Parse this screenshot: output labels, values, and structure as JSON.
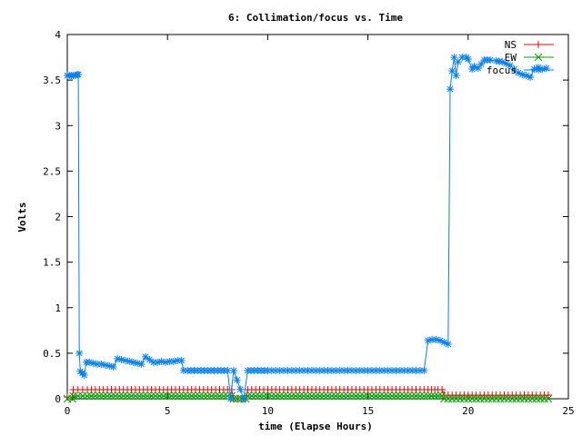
{
  "chart_data": {
    "type": "line",
    "title": "6: Collimation/focus vs. Time",
    "xlabel": "time (Elapse Hours)",
    "ylabel": "Volts",
    "xlim": [
      0,
      25
    ],
    "ylim": [
      0,
      4
    ],
    "xticks": [
      0,
      5,
      10,
      15,
      20,
      25
    ],
    "yticks": [
      0,
      0.5,
      1,
      1.5,
      2,
      2.5,
      3,
      3.5,
      4
    ],
    "grid": false,
    "legend_position": "top-right",
    "series": [
      {
        "name": "NS",
        "color": "#ff0000",
        "marker": "plus",
        "x": [
          0,
          0.25,
          0.3,
          1,
          2,
          3,
          4,
          5,
          6,
          7,
          8,
          8.2,
          8.3,
          8.9,
          9,
          10,
          11,
          12,
          13,
          14,
          15,
          16,
          17,
          18,
          18.5,
          18.7,
          18.8,
          19,
          20,
          21,
          22,
          23,
          24
        ],
        "y": [
          0.02,
          0.02,
          0.1,
          0.1,
          0.1,
          0.1,
          0.1,
          0.1,
          0.1,
          0.1,
          0.1,
          0.1,
          0.0,
          0.0,
          0.1,
          0.1,
          0.1,
          0.1,
          0.1,
          0.1,
          0.1,
          0.1,
          0.1,
          0.1,
          0.1,
          0.1,
          0.04,
          0.04,
          0.04,
          0.04,
          0.04,
          0.04,
          0.04
        ]
      },
      {
        "name": "EW",
        "color": "#00a000",
        "marker": "cross",
        "x": [
          0,
          0.25,
          0.3,
          1,
          2,
          3,
          4,
          5,
          6,
          7,
          8,
          8.2,
          8.3,
          8.9,
          9,
          10,
          11,
          12,
          13,
          14,
          15,
          16,
          17,
          18,
          18.5,
          18.7,
          18.8,
          19,
          20,
          21,
          22,
          23,
          24
        ],
        "y": [
          0.0,
          0.0,
          0.03,
          0.03,
          0.03,
          0.03,
          0.03,
          0.03,
          0.03,
          0.03,
          0.03,
          0.03,
          0.0,
          0.0,
          0.03,
          0.03,
          0.03,
          0.03,
          0.03,
          0.03,
          0.03,
          0.03,
          0.03,
          0.03,
          0.03,
          0.03,
          0.0,
          0.0,
          0.0,
          0.0,
          0.0,
          0.0,
          0.0
        ]
      },
      {
        "name": "focus",
        "color": "#0080ff",
        "marker": "star",
        "x": [
          0,
          0.1,
          0.2,
          0.3,
          0.4,
          0.5,
          0.55,
          0.6,
          0.65,
          0.75,
          0.85,
          0.95,
          1.1,
          1.3,
          1.5,
          1.7,
          1.9,
          2.1,
          2.3,
          2.5,
          2.7,
          2.9,
          3.1,
          3.3,
          3.5,
          3.7,
          3.9,
          4.1,
          4.3,
          4.5,
          4.7,
          4.9,
          5.1,
          5.3,
          5.5,
          5.7,
          5.8,
          6.0,
          6.5,
          7.0,
          7.5,
          8.0,
          8.15,
          8.3,
          8.8,
          9.0,
          9.5,
          10,
          11,
          12,
          13,
          14,
          15,
          16,
          17,
          17.8,
          18.0,
          18.2,
          18.4,
          18.6,
          18.8,
          19.0,
          19.1,
          19.2,
          19.3,
          19.4,
          19.5,
          19.7,
          19.9,
          20.0,
          20.2,
          20.3,
          20.5,
          20.8,
          21.1,
          21.4,
          21.7,
          21.9,
          22.1,
          22.3,
          22.5,
          22.7,
          22.9,
          23.1,
          23.3,
          23.5,
          23.7,
          23.9
        ],
        "y": [
          3.55,
          3.55,
          3.55,
          3.55,
          3.55,
          3.56,
          3.56,
          0.5,
          0.3,
          0.28,
          0.26,
          0.4,
          0.4,
          0.39,
          0.38,
          0.38,
          0.37,
          0.36,
          0.35,
          0.44,
          0.43,
          0.42,
          0.41,
          0.4,
          0.39,
          0.38,
          0.46,
          0.43,
          0.4,
          0.4,
          0.41,
          0.4,
          0.41,
          0.41,
          0.42,
          0.42,
          0.31,
          0.31,
          0.31,
          0.31,
          0.31,
          0.31,
          0.0,
          0.31,
          0.0,
          0.31,
          0.31,
          0.31,
          0.31,
          0.31,
          0.31,
          0.31,
          0.31,
          0.31,
          0.31,
          0.31,
          0.64,
          0.65,
          0.65,
          0.64,
          0.62,
          0.6,
          3.4,
          3.6,
          3.75,
          3.55,
          3.7,
          3.75,
          3.75,
          3.73,
          3.62,
          3.65,
          3.63,
          3.72,
          3.72,
          3.71,
          3.7,
          3.68,
          3.66,
          3.62,
          3.58,
          3.56,
          3.55,
          3.53,
          3.62,
          3.64,
          3.62,
          3.63
        ]
      }
    ]
  }
}
